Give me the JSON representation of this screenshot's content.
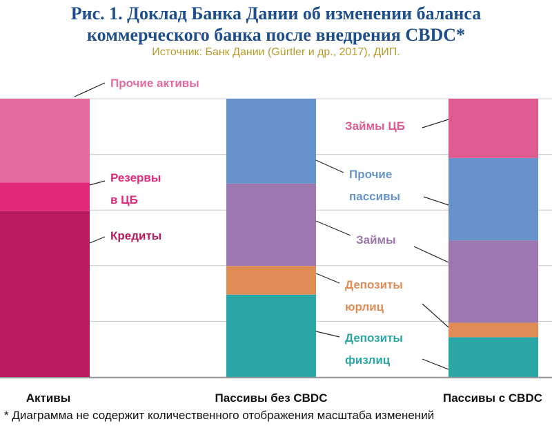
{
  "title_line1": "Рис. 1. Доклад Банка Дании об изменении баланса",
  "title_line2": "коммерческого банка после внедрения CBDC*",
  "source": "Источник: Банк Дании (Gürtler и др., 2017), ДИП.",
  "footnote": "* Диаграмма не содержит количественного отображения масштаба изменений",
  "colors": {
    "title": "#1e4e8c",
    "source": "#b89a2a",
    "other_assets": "#e56a9e",
    "reserves": "#e2287a",
    "loans": "#b81c5e",
    "cb_loans": "#e05a92",
    "other_liabilities": "#6693cc",
    "borrowings": "#9d78b0",
    "corp_deposits": "#e08c55",
    "retail_deposits": "#2aa6a6",
    "grid": "#c8c8c8"
  },
  "chart_data": {
    "type": "bar",
    "stacked": true,
    "categories": [
      "Активы",
      "Пассивы без CBDC",
      "Пассивы с CBDC"
    ],
    "ylim": [
      0,
      100
    ],
    "grid": true,
    "note": "Диаграмма не содержит количественного отображения масштаба изменений",
    "series": [
      {
        "name": "Кредиты",
        "color": "#b81c5e",
        "values": [
          59.6,
          0,
          0
        ]
      },
      {
        "name": "Резервы в ЦБ",
        "color": "#e2287a",
        "values": [
          10.3,
          0,
          0
        ]
      },
      {
        "name": "Прочие активы",
        "color": "#e56a9e",
        "values": [
          30.1,
          0,
          0
        ]
      },
      {
        "name": "Депозиты физлиц",
        "color": "#2aa6a6",
        "values": [
          0,
          29.6,
          14.3
        ]
      },
      {
        "name": "Депозиты юрлиц",
        "color": "#e08c55",
        "values": [
          0,
          10.3,
          5.2
        ]
      },
      {
        "name": "Займы",
        "color": "#9d78b0",
        "values": [
          0,
          29.6,
          29.6
        ]
      },
      {
        "name": "Прочие пассивы",
        "color": "#6693cc",
        "values": [
          0,
          30.5,
          29.6
        ]
      },
      {
        "name": "Займы ЦБ",
        "color": "#e05a92",
        "values": [
          0,
          0,
          21.3
        ]
      }
    ],
    "labels": [
      {
        "lines": [
          "Прочие активы"
        ],
        "color": "#e56a9e"
      },
      {
        "lines": [
          "Резервы",
          "в ЦБ"
        ],
        "color": "#e2287a"
      },
      {
        "lines": [
          "Кредиты"
        ],
        "color": "#b81c5e"
      },
      {
        "lines": [
          "Займы ЦБ"
        ],
        "color": "#e05a92"
      },
      {
        "lines": [
          "Прочие",
          "пассивы"
        ],
        "color": "#6693cc"
      },
      {
        "lines": [
          "Займы"
        ],
        "color": "#9d78b0"
      },
      {
        "lines": [
          "Депозиты",
          "юрлиц"
        ],
        "color": "#e08c55"
      },
      {
        "lines": [
          "Депозиты",
          "физлиц"
        ],
        "color": "#2aa6a6"
      }
    ]
  }
}
